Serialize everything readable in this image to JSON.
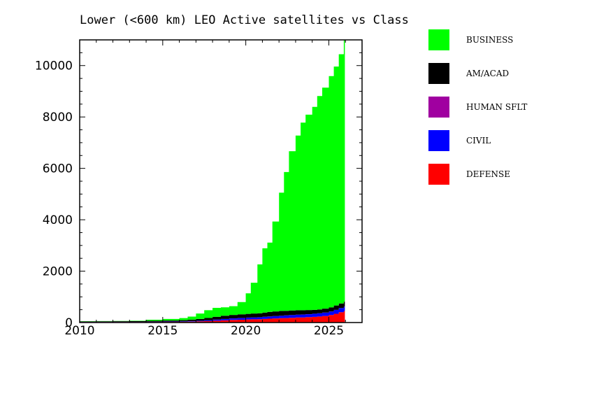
{
  "chart_data": {
    "type": "area",
    "stacked": true,
    "title": "Lower (<600 km) LEO Active satellites vs Class",
    "xlabel": "",
    "ylabel": "",
    "xlim": [
      2010,
      2027
    ],
    "ylim": [
      0,
      11000
    ],
    "x_ticks": [
      "2010",
      "2015",
      "2020",
      "2025"
    ],
    "y_ticks": [
      "0",
      "2000",
      "4000",
      "6000",
      "8000",
      "10000"
    ],
    "grid": false,
    "legend_position": "right",
    "x": [
      2010.0,
      2011.0,
      2012.0,
      2013.0,
      2014.0,
      2015.0,
      2016.0,
      2016.5,
      2017.0,
      2017.5,
      2018.0,
      2018.5,
      2019.0,
      2019.5,
      2020.0,
      2020.3,
      2020.7,
      2021.0,
      2021.3,
      2021.6,
      2022.0,
      2022.3,
      2022.6,
      2023.0,
      2023.3,
      2023.6,
      2024.0,
      2024.3,
      2024.6,
      2025.0,
      2025.3,
      2025.6,
      2025.9
    ],
    "series": [
      {
        "name": "DEFENSE",
        "color": "#ff0000",
        "values": [
          15,
          15,
          15,
          15,
          20,
          25,
          30,
          35,
          45,
          55,
          70,
          85,
          100,
          110,
          120,
          125,
          130,
          140,
          150,
          160,
          170,
          175,
          185,
          195,
          200,
          210,
          220,
          235,
          255,
          290,
          340,
          400,
          450
        ]
      },
      {
        "name": "CIVIL",
        "color": "#0000ff",
        "values": [
          8,
          8,
          8,
          8,
          10,
          12,
          15,
          18,
          22,
          30,
          40,
          50,
          60,
          65,
          70,
          72,
          75,
          80,
          85,
          90,
          95,
          100,
          105,
          110,
          110,
          115,
          120,
          125,
          130,
          140,
          150,
          160,
          170
        ]
      },
      {
        "name": "HUMAN SFLT",
        "color": "#a000a0",
        "values": [
          3,
          3,
          3,
          3,
          3,
          3,
          3,
          3,
          3,
          3,
          3,
          3,
          3,
          3,
          3,
          3,
          3,
          3,
          3,
          3,
          3,
          3,
          3,
          3,
          3,
          3,
          3,
          3,
          3,
          3,
          3,
          3,
          3
        ]
      },
      {
        "name": "AM/ACAD",
        "color": "#000000",
        "values": [
          15,
          20,
          25,
          30,
          35,
          40,
          45,
          55,
          70,
          90,
          110,
          125,
          135,
          140,
          145,
          150,
          155,
          165,
          175,
          180,
          185,
          180,
          175,
          170,
          165,
          160,
          150,
          150,
          155,
          160,
          170,
          180,
          190
        ]
      },
      {
        "name": "BUSINESS",
        "color": "#00ff00",
        "values": [
          10,
          10,
          10,
          15,
          40,
          60,
          80,
          120,
          210,
          300,
          350,
          330,
          340,
          480,
          800,
          1200,
          1900,
          2500,
          2700,
          3500,
          4600,
          5400,
          6200,
          6800,
          7300,
          7600,
          7900,
          8300,
          8600,
          9000,
          9300,
          9700,
          10200
        ]
      }
    ]
  }
}
